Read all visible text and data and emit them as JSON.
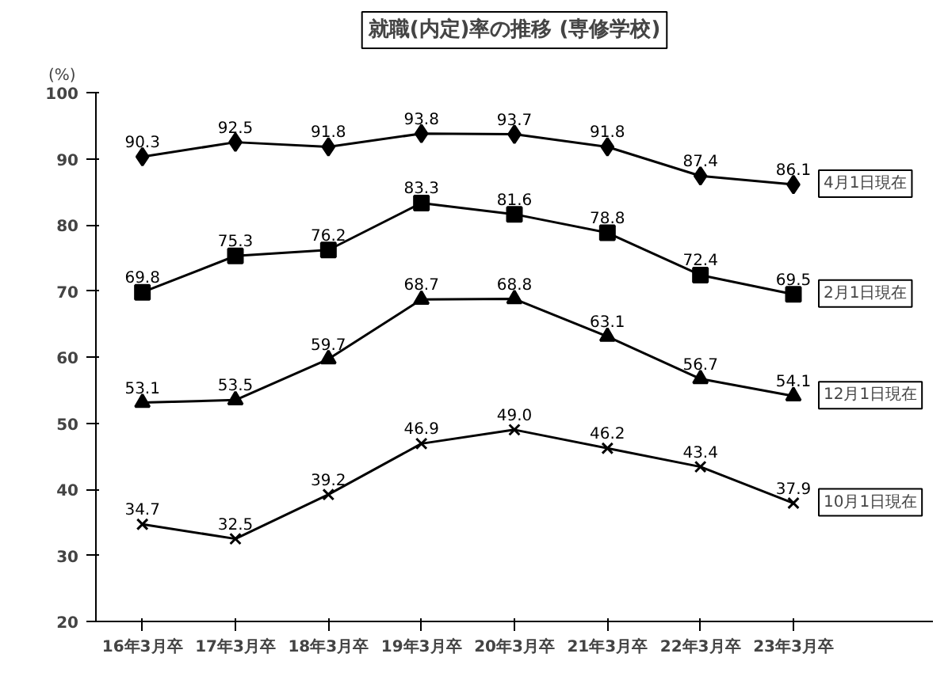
{
  "chart_data": {
    "type": "line",
    "title": "就職(内定)率の推移 (専修学校)",
    "ylabel": "(%)",
    "categories": [
      "16年3月卒",
      "17年3月卒",
      "18年3月卒",
      "19年3月卒",
      "20年3月卒",
      "21年3月卒",
      "22年3月卒",
      "23年3月卒"
    ],
    "ylim": [
      20,
      100
    ],
    "yticks": [
      20,
      30,
      40,
      50,
      60,
      70,
      80,
      90,
      100
    ],
    "grid": false,
    "line_style": "solid",
    "series": [
      {
        "name": "4月1日現在",
        "color": "#000000",
        "marker": "diamond",
        "values": [
          90.3,
          92.5,
          91.8,
          93.8,
          93.7,
          91.8,
          87.4,
          86.1
        ],
        "value_labels": [
          "90.3",
          "92.5",
          "91.8",
          "93.8",
          "93.7",
          "91.8",
          "87.4",
          "86.1"
        ]
      },
      {
        "name": "2月1日現在",
        "color": "#000000",
        "marker": "square",
        "values": [
          69.8,
          75.3,
          76.2,
          83.3,
          81.6,
          78.8,
          72.4,
          69.5
        ],
        "value_labels": [
          "69.8",
          "75.3",
          "76.2",
          "83.3",
          "81.6",
          "78.8",
          "72.4",
          "69.5"
        ]
      },
      {
        "name": "12月1日現在",
        "color": "#000000",
        "marker": "triangle",
        "values": [
          53.1,
          53.5,
          59.7,
          68.7,
          68.8,
          63.1,
          56.7,
          54.1
        ],
        "value_labels": [
          "53.1",
          "53.5",
          "59.7",
          "68.7",
          "68.8",
          "63.1",
          "56.7",
          "54.1"
        ]
      },
      {
        "name": "10月1日現在",
        "color": "#000000",
        "marker": "cross",
        "values": [
          34.7,
          32.5,
          39.2,
          46.9,
          49.0,
          46.2,
          43.4,
          37.9
        ],
        "value_labels": [
          "34.7",
          "32.5",
          "39.2",
          "46.9",
          "49.0",
          "46.2",
          "43.4",
          "37.9"
        ]
      }
    ]
  }
}
